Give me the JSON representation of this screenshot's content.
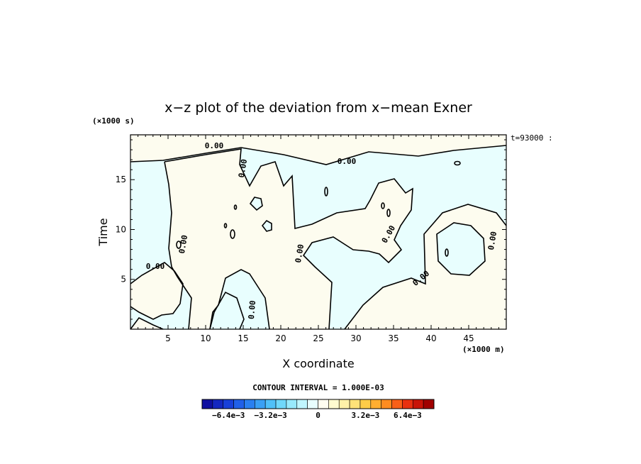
{
  "chart_data": {
    "type": "contour",
    "title": "x−z plot of the deviation from x−mean Exner",
    "xlabel": "X coordinate",
    "ylabel": "Time",
    "x_unit": "(×1000 m)",
    "y_unit": "(×1000 s)",
    "xlim": [
      0,
      50
    ],
    "ylim": [
      0,
      19.5
    ],
    "x_ticks": [
      5,
      10,
      15,
      20,
      25,
      30,
      35,
      40,
      45
    ],
    "y_ticks": [
      5,
      10,
      15
    ],
    "time_label": "t=93000 :",
    "contour_interval_label": "CONTOUR INTERVAL = 1.000E-03",
    "contour_label_text": "0.00",
    "colorbar": {
      "tick_labels": [
        "−6.4e−3",
        "−3.2e−3",
        "0",
        "3.2e−3",
        "6.4e−3"
      ],
      "colors": [
        "#1010a0",
        "#1428c0",
        "#1840d8",
        "#2060e8",
        "#2a80f0",
        "#3aa0f4",
        "#50c0f8",
        "#70d8fa",
        "#98eafc",
        "#c0f6fe",
        "#e8fefe",
        "#fffef0",
        "#fffbd0",
        "#fff1a8",
        "#ffe278",
        "#ffcc48",
        "#ffae30",
        "#ff8c20",
        "#f86018",
        "#e83010",
        "#c81408",
        "#a00000"
      ]
    },
    "regions": {
      "positive_color": "#fdfcef",
      "negative_color": "#e8fefe"
    }
  }
}
